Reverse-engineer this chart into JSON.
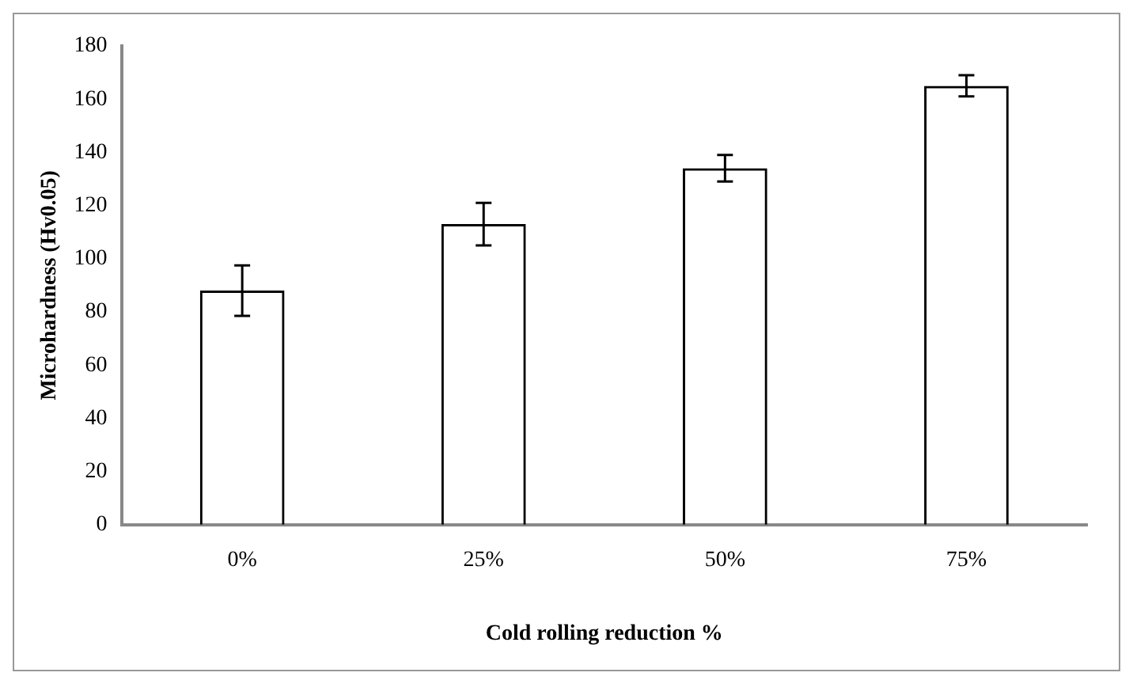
{
  "chart_data": {
    "type": "bar",
    "xlabel": "Cold rolling reduction %",
    "ylabel": "Microhardness (Hv0.05)",
    "categories": [
      "0%",
      "25%",
      "50%",
      "75%"
    ],
    "values": [
      88,
      113,
      134,
      165
    ],
    "errors": [
      9.5,
      8,
      5,
      4
    ],
    "color": "#000000",
    "ylim": [
      0,
      180
    ],
    "yticks": [
      0,
      20,
      40,
      60,
      80,
      100,
      120,
      140,
      160,
      180
    ],
    "grid": false,
    "legend": false
  }
}
